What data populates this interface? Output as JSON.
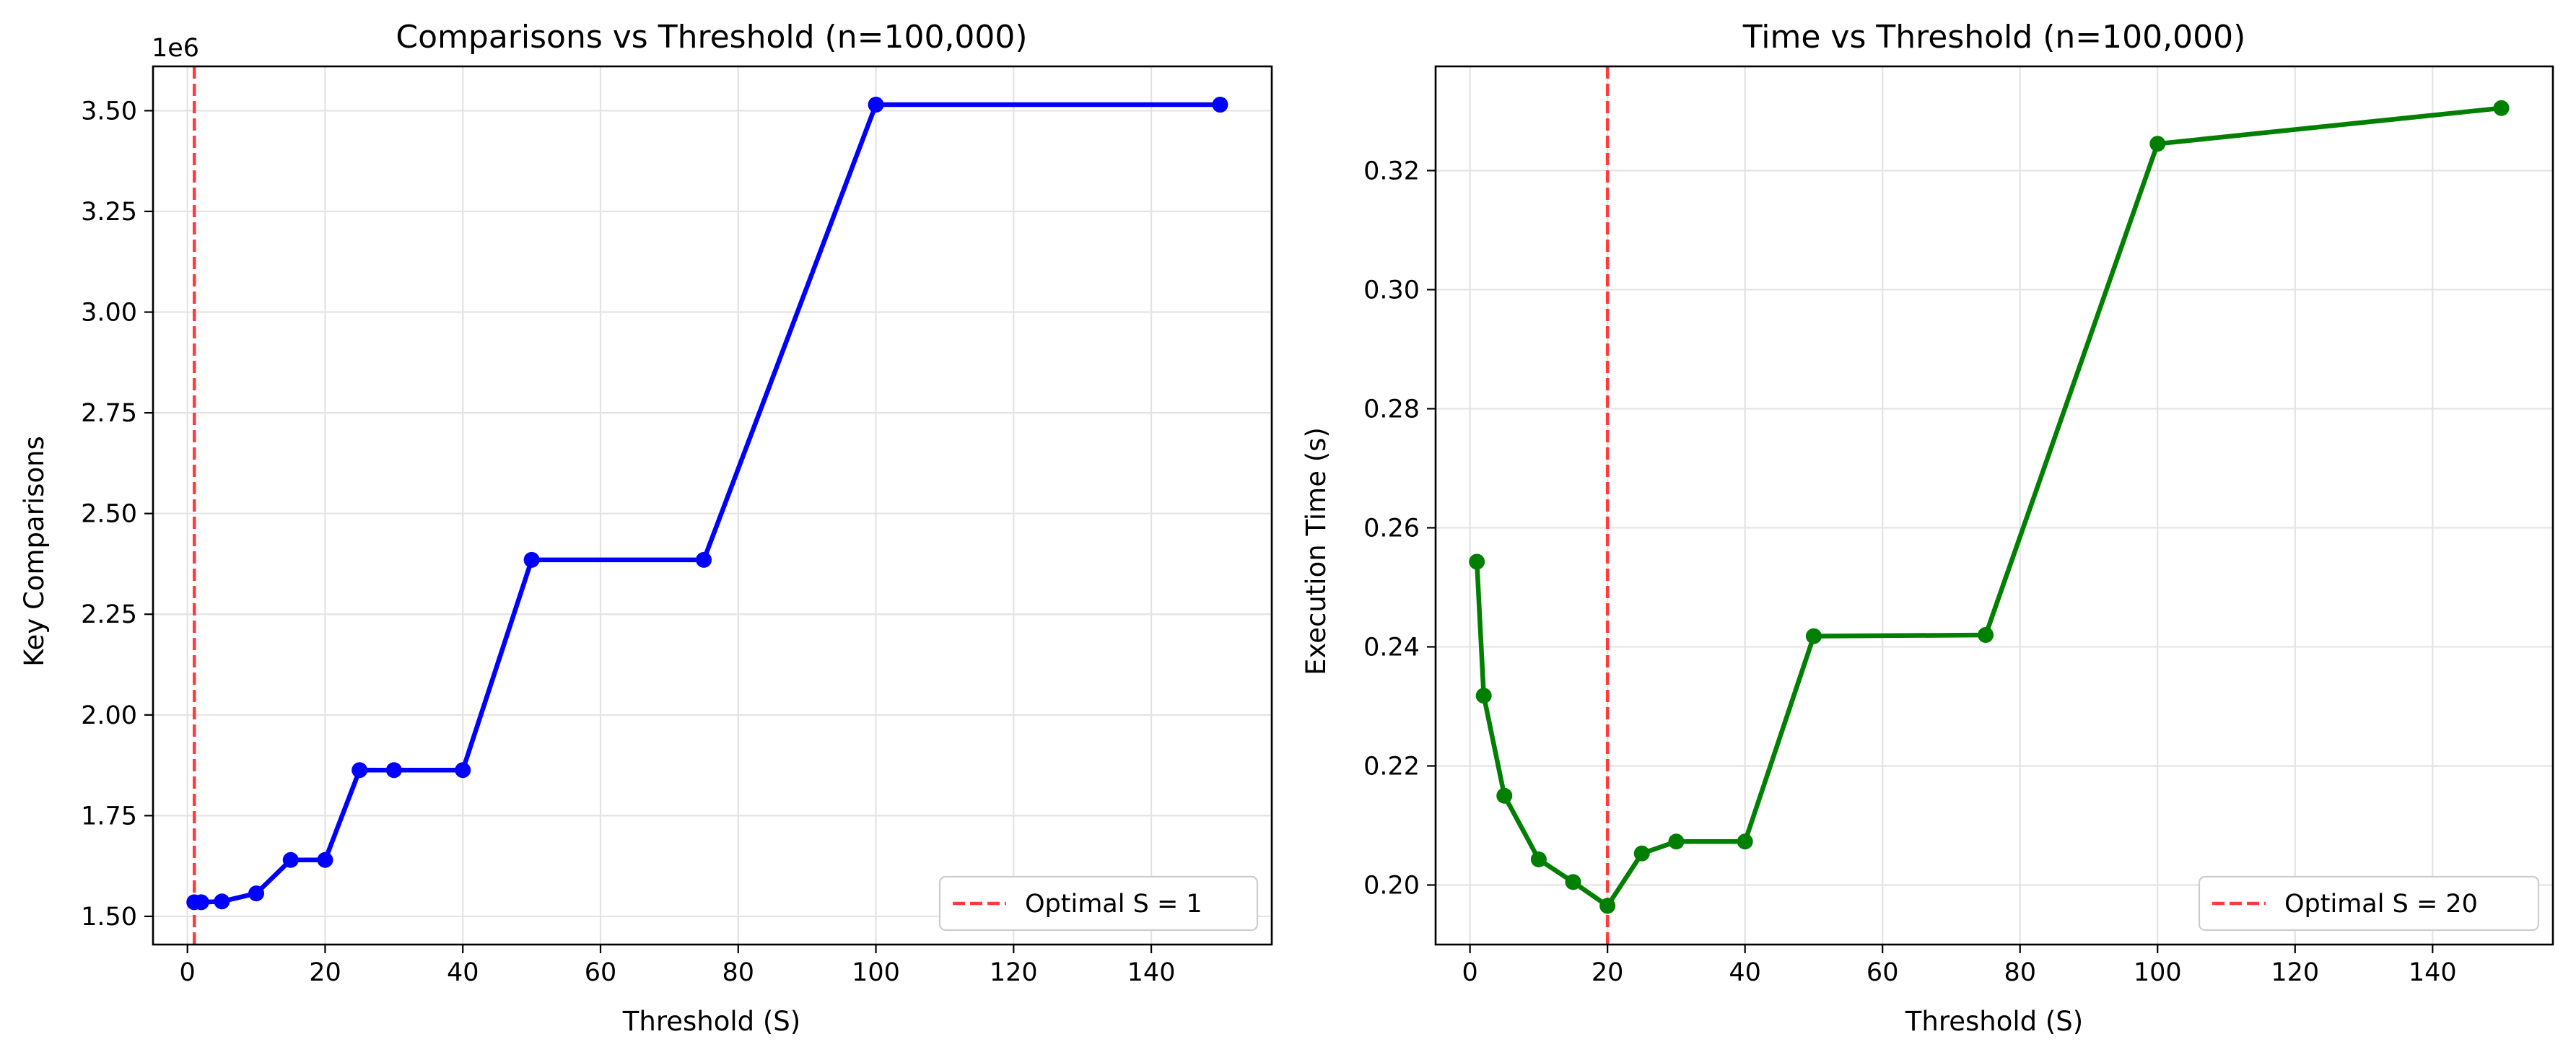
{
  "chart_data": [
    {
      "type": "line",
      "title": "Comparisons vs Threshold (n=100,000)",
      "xlabel": "Threshold (S)",
      "ylabel": "Key Comparisons",
      "y_offset_label": "1e6",
      "xlim": [
        -5,
        157.5
      ],
      "ylim": [
        1.43,
        3.61
      ],
      "xticks": [
        0,
        20,
        40,
        60,
        80,
        100,
        120,
        140
      ],
      "yticks": [
        1.5,
        1.75,
        2.0,
        2.25,
        2.5,
        2.75,
        3.0,
        3.25,
        3.5
      ],
      "ytick_decimals": 2,
      "grid": true,
      "legend_position": "lower-right",
      "series": [
        {
          "color": "#0000ff",
          "x": [
            1,
            2,
            5,
            10,
            15,
            20,
            25,
            30,
            40,
            50,
            75,
            100,
            150
          ],
          "y": [
            1.535,
            1.535,
            1.537,
            1.557,
            1.64,
            1.64,
            1.863,
            1.863,
            1.863,
            2.385,
            2.385,
            3.515,
            3.515
          ]
        }
      ],
      "reference_line": {
        "x": 1,
        "label": "Optimal S = 1",
        "color": "#ff3b3b"
      }
    },
    {
      "type": "line",
      "title": "Time vs Threshold (n=100,000)",
      "xlabel": "Threshold (S)",
      "ylabel": "Execution Time (s)",
      "y_offset_label": "",
      "xlim": [
        -5,
        157.5
      ],
      "ylim": [
        0.19,
        0.3375
      ],
      "xticks": [
        0,
        20,
        40,
        60,
        80,
        100,
        120,
        140
      ],
      "yticks": [
        0.2,
        0.22,
        0.24,
        0.26,
        0.28,
        0.3,
        0.32
      ],
      "ytick_decimals": 2,
      "grid": true,
      "legend_position": "lower-right",
      "series": [
        {
          "color": "#007f00",
          "x": [
            1,
            2,
            5,
            10,
            15,
            20,
            25,
            30,
            40,
            50,
            75,
            100,
            150
          ],
          "y": [
            0.2543,
            0.2318,
            0.215,
            0.2043,
            0.2005,
            0.1965,
            0.2053,
            0.2073,
            0.2073,
            0.2418,
            0.242,
            0.3245,
            0.3305
          ]
        }
      ],
      "reference_line": {
        "x": 20,
        "label": "Optimal S = 20",
        "color": "#ff3b3b"
      }
    }
  ]
}
